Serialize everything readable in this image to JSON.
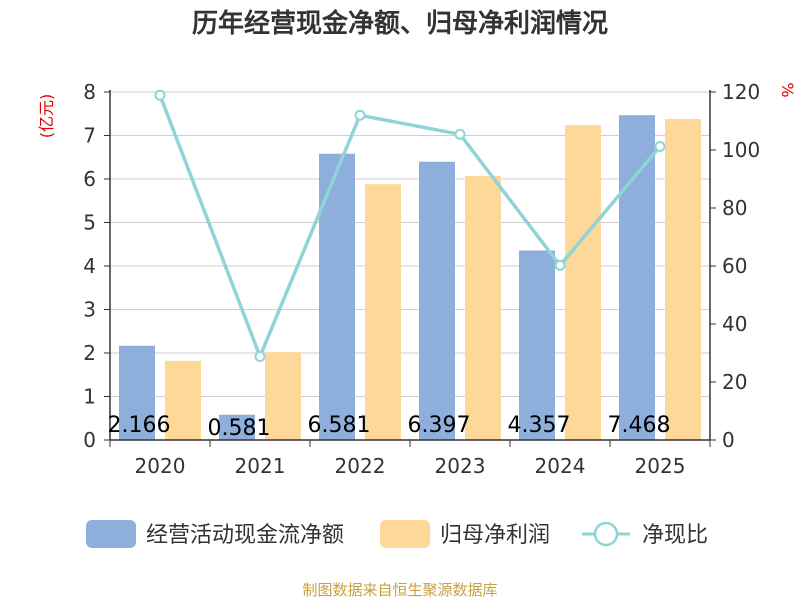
{
  "chart_data": {
    "type": "bar",
    "title": "历年经营现金净额、归母净利润情况",
    "categories": [
      "2020",
      "2021",
      "2022",
      "2023",
      "2024",
      "2025"
    ],
    "y_left": {
      "unit": "(亿元)",
      "range": [
        0,
        8
      ],
      "ticks": [
        0,
        1,
        2,
        3,
        4,
        5,
        6,
        7,
        8
      ]
    },
    "y_right": {
      "unit": "%",
      "range": [
        0,
        120
      ],
      "ticks": [
        0,
        20,
        40,
        60,
        80,
        100,
        120
      ]
    },
    "series": [
      {
        "name": "经营活动现金流净额",
        "type": "bar",
        "axis": "left",
        "color": "#8eaedb",
        "values": [
          2.166,
          0.581,
          6.581,
          6.397,
          4.357,
          7.468
        ],
        "labels": [
          "2.166",
          "0.581",
          "6.581",
          "6.397",
          "4.357",
          "7.468"
        ]
      },
      {
        "name": "归母净利润",
        "type": "bar",
        "axis": "left",
        "color": "#fdd898",
        "values": [
          1.82,
          2.02,
          5.88,
          6.07,
          7.24,
          7.38
        ]
      },
      {
        "name": "净现比",
        "type": "line",
        "axis": "right",
        "color": "#8fd4d8",
        "values": [
          118.9,
          28.8,
          112.0,
          105.4,
          60.2,
          101.2
        ]
      }
    ],
    "grid": true,
    "legend_position": "bottom",
    "source": "制图数据来自恒生聚源数据库"
  }
}
